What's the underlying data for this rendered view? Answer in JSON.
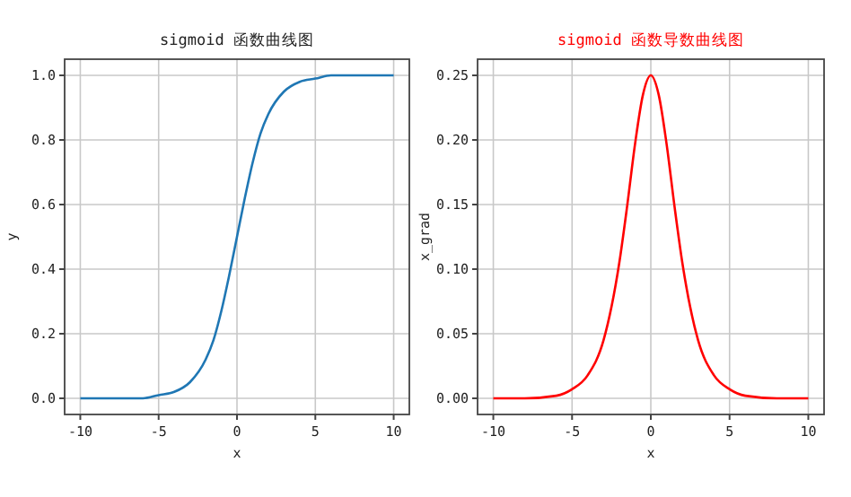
{
  "chart_data": [
    {
      "type": "line",
      "title": "sigmoid 函数曲线图",
      "xlabel": "x",
      "ylabel": "y",
      "x": [
        -10,
        -8,
        -6,
        -5,
        -4,
        -3,
        -2,
        -1.5,
        -1,
        -0.5,
        0,
        0.5,
        1,
        1.5,
        2,
        3,
        4,
        5,
        6,
        8,
        10
      ],
      "series": [
        {
          "color": "#1f77b4",
          "values": [
            0,
            0,
            0,
            0.01,
            0.02,
            0.05,
            0.12,
            0.18,
            0.27,
            0.38,
            0.5,
            0.62,
            0.73,
            0.82,
            0.88,
            0.95,
            0.98,
            0.99,
            1,
            1,
            1
          ]
        }
      ],
      "xlim": [
        -11,
        11
      ],
      "xticks": [
        -10,
        -5,
        0,
        5,
        10
      ],
      "ylim": [
        -0.05,
        1.05
      ],
      "yticks": [
        {
          "value": 0,
          "label": "0.0"
        },
        {
          "value": 0.2,
          "label": "0.2"
        },
        {
          "value": 0.4,
          "label": "0.4"
        },
        {
          "value": 0.6,
          "label": "0.6"
        },
        {
          "value": 0.8,
          "label": "0.8"
        },
        {
          "value": 1,
          "label": "1.0"
        }
      ],
      "grid": true
    },
    {
      "type": "line",
      "title": "sigmoid 函数导数曲线图",
      "xlabel": "x",
      "ylabel": "x_grad",
      "x": [
        -10,
        -8,
        -6,
        -5,
        -4,
        -3,
        -2,
        -1.5,
        -1,
        -0.5,
        0,
        0.5,
        1,
        1.5,
        2,
        3,
        4,
        5,
        6,
        8,
        10
      ],
      "series": [
        {
          "color": "#ff0000",
          "values": [
            0,
            0,
            0.002,
            0.007,
            0.018,
            0.045,
            0.105,
            0.149,
            0.197,
            0.235,
            0.25,
            0.235,
            0.197,
            0.149,
            0.105,
            0.045,
            0.018,
            0.007,
            0.002,
            0,
            0
          ]
        }
      ],
      "xlim": [
        -11,
        11
      ],
      "xticks": [
        -10,
        -5,
        0,
        5,
        10
      ],
      "ylim": [
        -0.0125,
        0.2625
      ],
      "yticks": [
        {
          "value": 0,
          "label": "0.00"
        },
        {
          "value": 0.05,
          "label": "0.05"
        },
        {
          "value": 0.1,
          "label": "0.10"
        },
        {
          "value": 0.15,
          "label": "0.15"
        },
        {
          "value": 0.2,
          "label": "0.20"
        },
        {
          "value": 0.25,
          "label": "0.25"
        }
      ],
      "grid": true
    }
  ]
}
